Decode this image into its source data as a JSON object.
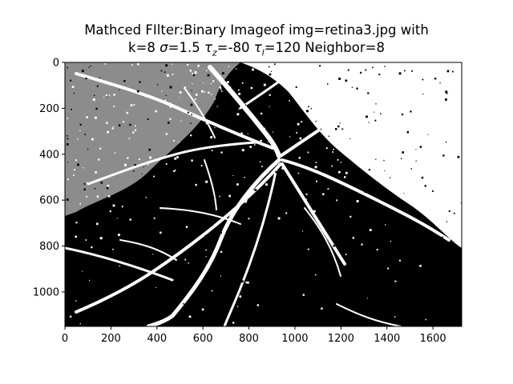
{
  "chart_data": {
    "type": "image",
    "title_line1": "Mathced FIlter:Binary Imageof img=retina3.jpg with",
    "title_line2_parts": {
      "k": "k=8 ",
      "sigma_symbol": "σ",
      "sigma_value": "=1.5 ",
      "tau": "τ",
      "tau_z_subscript": "z",
      "tau_z_value": "=-80 ",
      "tau_l_subscript": "l",
      "tau_l_value": "=120 Neighbor=8"
    },
    "image_extent": {
      "x": [
        0,
        1725
      ],
      "y": [
        1150,
        0
      ]
    },
    "x_ticks": [
      0,
      200,
      400,
      600,
      800,
      1000,
      1200,
      1400,
      1600
    ],
    "y_ticks": [
      0,
      200,
      400,
      600,
      800,
      1000
    ],
    "y_axis_inverted": true,
    "colormap": [
      "#000000",
      "#ffffff"
    ],
    "x_tick_labels": [
      "0",
      "200",
      "400",
      "600",
      "800",
      "1000",
      "1200",
      "1400",
      "1600"
    ],
    "y_tick_labels": [
      "0",
      "200",
      "400",
      "600",
      "800",
      "1000"
    ]
  }
}
